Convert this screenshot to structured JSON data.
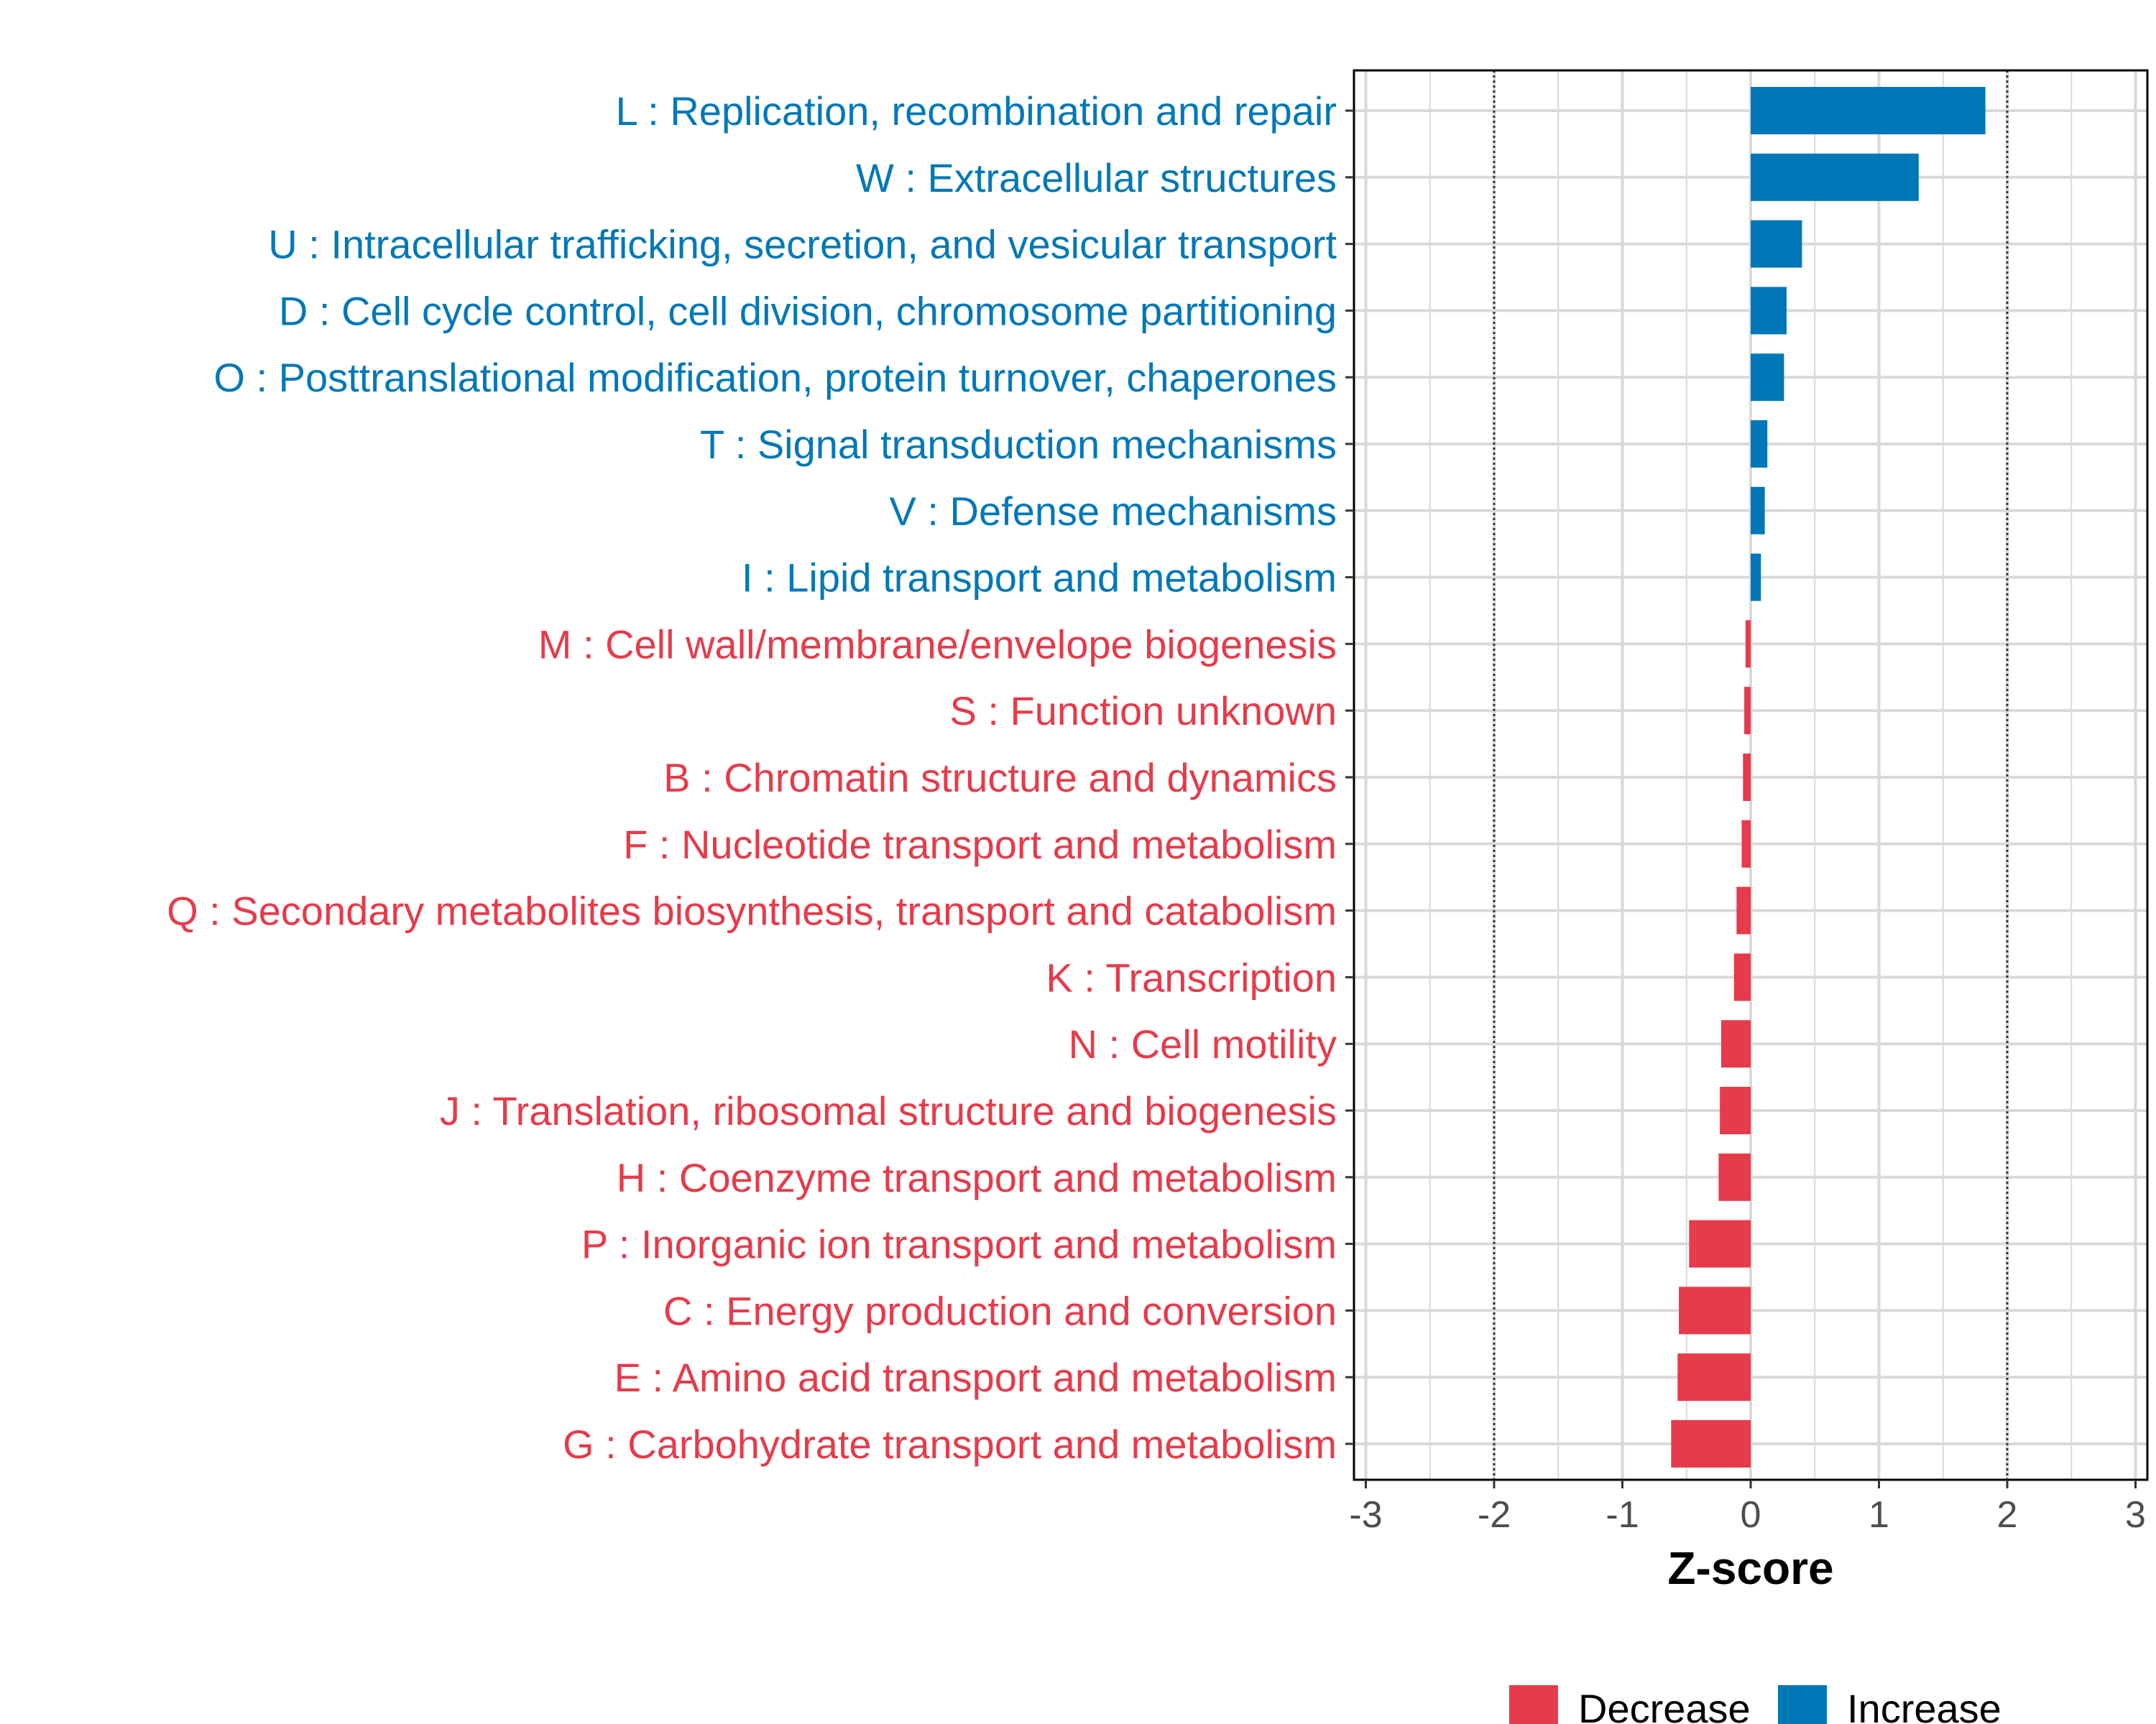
{
  "chart_data": {
    "type": "bar",
    "orientation": "horizontal",
    "title": "",
    "xlabel": "Z-score",
    "ylabel": "",
    "xlim": [
      -3,
      3
    ],
    "x_ticks": [
      "-3",
      "-2",
      "-1",
      "0",
      "1",
      "2",
      "3"
    ],
    "x_tick_values": [
      -3,
      -2,
      -1,
      0,
      1,
      2,
      3
    ],
    "reference_lines": [
      -2,
      2
    ],
    "grid": true,
    "legend_position": "bottom",
    "legend": [
      {
        "name": "Decrease",
        "color": "#E63B4A"
      },
      {
        "name": "Increase",
        "color": "#0078B8"
      }
    ],
    "categories": [
      "L : Replication, recombination and repair",
      "W : Extracellular structures",
      "U : Intracellular trafficking, secretion, and vesicular transport",
      "D : Cell cycle control, cell division, chromosome partitioning",
      "O : Posttranslational modification, protein turnover, chaperones",
      "T : Signal transduction mechanisms",
      "V : Defense mechanisms",
      "I : Lipid transport and metabolism",
      "M : Cell wall/membrane/envelope biogenesis",
      "S : Function unknown",
      "B : Chromatin structure and dynamics",
      "F : Nucleotide transport and metabolism",
      "Q : Secondary metabolites biosynthesis, transport and catabolism",
      "K : Transcription",
      "N : Cell motility",
      "J : Translation, ribosomal structure and biogenesis",
      "H : Coenzyme transport and metabolism",
      "P : Inorganic ion transport and metabolism",
      "C : Energy production and conversion",
      "E : Amino acid transport and metabolism",
      "G : Carbohydrate transport and metabolism"
    ],
    "values": [
      1.83,
      1.31,
      0.4,
      0.28,
      0.26,
      0.13,
      0.11,
      0.08,
      -0.04,
      -0.05,
      -0.06,
      -0.07,
      -0.11,
      -0.13,
      -0.23,
      -0.24,
      -0.25,
      -0.48,
      -0.56,
      -0.57,
      -0.62
    ],
    "groups": [
      "Increase",
      "Increase",
      "Increase",
      "Increase",
      "Increase",
      "Increase",
      "Increase",
      "Increase",
      "Decrease",
      "Decrease",
      "Decrease",
      "Decrease",
      "Decrease",
      "Decrease",
      "Decrease",
      "Decrease",
      "Decrease",
      "Decrease",
      "Decrease",
      "Decrease",
      "Decrease"
    ]
  }
}
